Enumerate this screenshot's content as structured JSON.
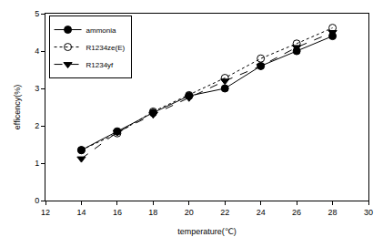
{
  "chart_data": {
    "type": "line",
    "x_label": "temperature(℃)",
    "y_label": "efficency(%)",
    "x": [
      14,
      16,
      18,
      20,
      22,
      24,
      26,
      28
    ],
    "series": [
      {
        "name": "ammonia",
        "color": "#000000",
        "marker": "circle",
        "line_style": "solid",
        "values": [
          1.35,
          1.85,
          2.35,
          2.8,
          3.0,
          3.6,
          4.0,
          4.4
        ]
      },
      {
        "name": "R1234ze(E)",
        "color": "#000000",
        "marker": "circle-open",
        "line_style": "dot",
        "values": [
          1.35,
          1.8,
          2.38,
          2.82,
          3.28,
          3.8,
          4.2,
          4.62
        ]
      },
      {
        "name": "R1234yf",
        "color": "#000000",
        "marker": "triangle-down",
        "line_style": "dash",
        "values": [
          1.12,
          1.83,
          2.3,
          2.75,
          3.2,
          3.6,
          4.1,
          4.5
        ]
      }
    ],
    "xlim": [
      12,
      30
    ],
    "xticks": [
      12,
      14,
      16,
      18,
      20,
      22,
      24,
      26,
      28,
      30
    ],
    "ylim": [
      0,
      5
    ],
    "yticks": [
      0,
      1,
      2,
      3,
      4,
      5
    ],
    "grid": false,
    "legend": "upper left"
  }
}
